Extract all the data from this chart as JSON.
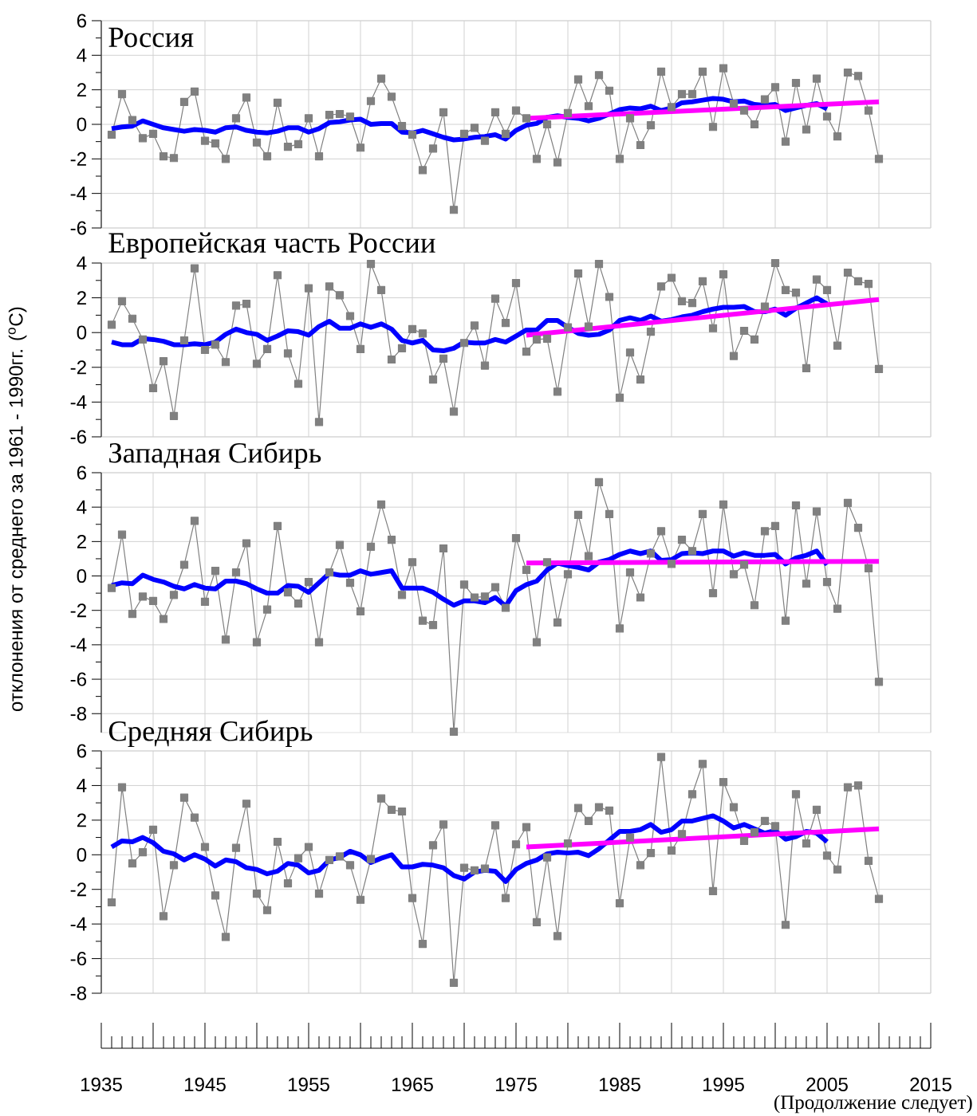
{
  "chart_data": [
    {
      "type": "line",
      "title": "Россия",
      "xlim": [
        1935,
        2015
      ],
      "xticks": [
        1935,
        {
          "value": 1940,
          "label": null
        },
        1945,
        {
          "value": 1950,
          "label": null
        },
        1955,
        {
          "value": 1960,
          "label": null
        },
        1965,
        {
          "value": 1970,
          "label": null
        },
        1975,
        {
          "value": 1980,
          "label": null
        },
        1985,
        {
          "value": 1990,
          "label": null
        },
        1995,
        {
          "value": 2000,
          "label": null
        },
        2005,
        {
          "value": 2010,
          "label": null
        },
        2015
      ],
      "ylim": [
        -6,
        6
      ],
      "yticks": [
        -6,
        -4,
        -2,
        0,
        2,
        4,
        6
      ],
      "grid": true,
      "tick_labels": "y",
      "x": [
        1936,
        1937,
        1938,
        1939,
        1940,
        1941,
        1942,
        1943,
        1944,
        1945,
        1946,
        1947,
        1948,
        1949,
        1950,
        1951,
        1952,
        1953,
        1954,
        1955,
        1956,
        1957,
        1958,
        1959,
        1960,
        1961,
        1962,
        1963,
        1964,
        1965,
        1966,
        1967,
        1968,
        1969,
        1970,
        1971,
        1972,
        1973,
        1974,
        1975,
        1976,
        1977,
        1978,
        1979,
        1980,
        1981,
        1982,
        1983,
        1984,
        1985,
        1986,
        1987,
        1988,
        1989,
        1990,
        1991,
        1992,
        1993,
        1994,
        1995,
        1996,
        1997,
        1998,
        1999,
        2000,
        2001,
        2002,
        2003,
        2004,
        2005,
        2006,
        2007,
        2008,
        2009,
        2010
      ],
      "series": [
        {
          "color": "#808080",
          "marker": "square",
          "values": [
            -0.6,
            1.75,
            0.25,
            -0.8,
            -0.55,
            -1.85,
            -1.95,
            1.3,
            1.9,
            -0.95,
            -1.1,
            -2.0,
            0.35,
            1.55,
            -1.05,
            -1.85,
            1.25,
            -1.3,
            -1.15,
            0.35,
            -1.85,
            0.55,
            0.6,
            0.45,
            -1.35,
            1.35,
            2.65,
            1.6,
            -0.1,
            -0.6,
            -2.65,
            -1.4,
            0.7,
            -4.95,
            -0.55,
            -0.2,
            -0.95,
            0.7,
            -0.55,
            0.8,
            0.35,
            -2.0,
            0.0,
            -2.2,
            0.65,
            2.6,
            1.05,
            2.85,
            1.95,
            -2.0,
            0.35,
            -1.2,
            -0.05,
            3.05,
            1.0,
            1.75,
            1.75,
            3.05,
            -0.15,
            3.25,
            1.2,
            0.8,
            0.0,
            1.45,
            2.15,
            -1.0,
            2.4,
            -0.3,
            2.65,
            0.45,
            -0.7,
            3.0,
            2.8,
            0.8,
            -2.0
          ]
        },
        {
          "color": "#0000ff",
          "marker": "none",
          "x": [
            1936,
            1937,
            1938,
            1939,
            1940,
            1941,
            1942,
            1943,
            1944,
            1945,
            1946,
            1947,
            1948,
            1949,
            1950,
            1951,
            1952,
            1953,
            1954,
            1955,
            1956,
            1957,
            1958,
            1959,
            1960,
            1961,
            1962,
            1963,
            1964,
            1965,
            1966,
            1967,
            1968,
            1969,
            1970,
            1971,
            1972,
            1973,
            1974,
            1975,
            1976,
            1977,
            1978,
            1979,
            1980,
            1981,
            1982,
            1983,
            1984,
            1985,
            1986,
            1987,
            1988,
            1989,
            1990,
            1991,
            1992,
            1993,
            1994,
            1995,
            1996,
            1997,
            1998,
            1999,
            2000,
            2001,
            2002,
            2003,
            2004,
            2005
          ],
          "values": [
            -0.25,
            -0.15,
            -0.1,
            0.2,
            0.0,
            -0.2,
            -0.3,
            -0.4,
            -0.3,
            -0.35,
            -0.45,
            -0.2,
            -0.15,
            -0.35,
            -0.45,
            -0.5,
            -0.4,
            -0.2,
            -0.2,
            -0.45,
            -0.25,
            0.1,
            0.15,
            0.25,
            0.3,
            0.0,
            0.05,
            0.05,
            -0.45,
            -0.5,
            -0.35,
            -0.55,
            -0.75,
            -0.9,
            -0.85,
            -0.75,
            -0.7,
            -0.6,
            -0.85,
            -0.35,
            -0.05,
            0.05,
            0.4,
            0.5,
            0.4,
            0.35,
            0.2,
            0.35,
            0.6,
            0.85,
            0.95,
            0.9,
            1.05,
            0.8,
            0.95,
            1.25,
            1.3,
            1.4,
            1.5,
            1.45,
            1.3,
            1.35,
            1.15,
            1.1,
            1.15,
            0.8,
            0.95,
            1.1,
            1.2,
            0.9
          ]
        },
        {
          "color": "#ff00ff",
          "marker": "none",
          "x": [
            1976,
            2010
          ],
          "values": [
            0.35,
            1.3
          ]
        }
      ]
    },
    {
      "type": "line",
      "title": "Европейская часть России",
      "xlim": [
        1935,
        2015
      ],
      "xticks": [
        1935,
        {
          "value": 1940,
          "label": null
        },
        1945,
        {
          "value": 1950,
          "label": null
        },
        1955,
        {
          "value": 1960,
          "label": null
        },
        1965,
        {
          "value": 1970,
          "label": null
        },
        1975,
        {
          "value": 1980,
          "label": null
        },
        1985,
        {
          "value": 1990,
          "label": null
        },
        1995,
        {
          "value": 2000,
          "label": null
        },
        2005,
        {
          "value": 2010,
          "label": null
        },
        2015
      ],
      "ylim": [
        -6,
        4
      ],
      "yticks": [
        -6,
        -4,
        -2,
        0,
        2,
        4
      ],
      "grid": true,
      "tick_labels": "y",
      "x": [
        1936,
        1937,
        1938,
        1939,
        1940,
        1941,
        1942,
        1943,
        1944,
        1945,
        1946,
        1947,
        1948,
        1949,
        1950,
        1951,
        1952,
        1953,
        1954,
        1955,
        1956,
        1957,
        1958,
        1959,
        1960,
        1961,
        1962,
        1963,
        1964,
        1965,
        1966,
        1967,
        1968,
        1969,
        1970,
        1971,
        1972,
        1973,
        1974,
        1975,
        1976,
        1977,
        1978,
        1979,
        1980,
        1981,
        1982,
        1983,
        1984,
        1985,
        1986,
        1987,
        1988,
        1989,
        1990,
        1991,
        1992,
        1993,
        1994,
        1995,
        1996,
        1997,
        1998,
        1999,
        2000,
        2001,
        2002,
        2003,
        2004,
        2005,
        2006,
        2007,
        2008,
        2009,
        2010
      ],
      "series": [
        {
          "color": "#808080",
          "marker": "square",
          "values": [
            0.45,
            1.8,
            0.8,
            -0.4,
            -3.2,
            -1.65,
            -4.8,
            -0.45,
            3.7,
            -1.0,
            -0.7,
            -1.7,
            1.55,
            1.65,
            -1.8,
            -0.95,
            3.3,
            -1.2,
            -2.95,
            2.55,
            -5.15,
            2.65,
            2.15,
            0.95,
            -0.95,
            3.95,
            2.45,
            -1.55,
            -0.9,
            0.2,
            -0.05,
            -2.7,
            -1.5,
            -4.55,
            -0.6,
            0.4,
            -1.9,
            1.95,
            0.55,
            2.85,
            -1.1,
            -0.4,
            -0.35,
            -3.4,
            0.3,
            3.4,
            0.35,
            3.95,
            2.05,
            -3.75,
            -1.15,
            -2.7,
            0.05,
            2.65,
            3.15,
            1.8,
            1.7,
            2.95,
            0.25,
            3.35,
            -1.35,
            0.1,
            -0.4,
            1.5,
            4.0,
            2.45,
            2.3,
            -2.05,
            3.05,
            2.45,
            -0.75,
            3.45,
            2.95,
            2.8,
            -2.1
          ]
        },
        {
          "color": "#0000ff",
          "marker": "none",
          "x": [
            1936,
            1937,
            1938,
            1939,
            1940,
            1941,
            1942,
            1943,
            1944,
            1945,
            1946,
            1947,
            1948,
            1949,
            1950,
            1951,
            1952,
            1953,
            1954,
            1955,
            1956,
            1957,
            1958,
            1959,
            1960,
            1961,
            1962,
            1963,
            1964,
            1965,
            1966,
            1967,
            1968,
            1969,
            1970,
            1971,
            1972,
            1973,
            1974,
            1975,
            1976,
            1977,
            1978,
            1979,
            1980,
            1981,
            1982,
            1983,
            1984,
            1985,
            1986,
            1987,
            1988,
            1989,
            1990,
            1991,
            1992,
            1993,
            1994,
            1995,
            1996,
            1997,
            1998,
            1999,
            2000,
            2001,
            2002,
            2003,
            2004,
            2005
          ],
          "values": [
            -0.55,
            -0.7,
            -0.7,
            -0.35,
            -0.4,
            -0.5,
            -0.7,
            -0.7,
            -0.65,
            -0.7,
            -0.55,
            -0.1,
            0.2,
            0.0,
            -0.1,
            -0.45,
            -0.2,
            0.1,
            0.05,
            -0.15,
            0.35,
            0.65,
            0.25,
            0.25,
            0.5,
            0.3,
            0.5,
            0.2,
            -0.45,
            -0.6,
            -0.45,
            -1.0,
            -1.05,
            -0.9,
            -0.55,
            -0.6,
            -0.6,
            -0.4,
            -0.55,
            -0.2,
            0.15,
            0.15,
            0.7,
            0.7,
            0.3,
            -0.05,
            -0.15,
            -0.1,
            0.15,
            0.7,
            0.85,
            0.7,
            0.95,
            0.65,
            0.75,
            0.9,
            1.0,
            1.2,
            1.35,
            1.45,
            1.45,
            1.5,
            1.2,
            1.2,
            1.35,
            1.0,
            1.4,
            1.7,
            2.0,
            1.65
          ]
        },
        {
          "color": "#ff00ff",
          "marker": "none",
          "x": [
            1976,
            2010
          ],
          "values": [
            -0.15,
            1.9
          ]
        }
      ]
    },
    {
      "type": "line",
      "title": "Западная Сибирь",
      "ylabel": "отклонения от среднего за 1961 - 1990гг. ($^{o}$C)",
      "xlim": [
        1935,
        2015
      ],
      "xticks": [
        1935,
        {
          "value": 1940,
          "label": null
        },
        1945,
        {
          "value": 1950,
          "label": null
        },
        1955,
        {
          "value": 1960,
          "label": null
        },
        1965,
        {
          "value": 1970,
          "label": null
        },
        1975,
        {
          "value": 1980,
          "label": null
        },
        1985,
        {
          "value": 1990,
          "label": null
        },
        1995,
        {
          "value": 2000,
          "label": null
        },
        2005,
        {
          "value": 2010,
          "label": null
        },
        2015
      ],
      "ylim": [
        -9.1,
        6
      ],
      "yticks": [
        -8,
        -6,
        -4,
        -2,
        0,
        2,
        4,
        6
      ],
      "grid": true,
      "tick_labels": "y",
      "x": [
        1936,
        1937,
        1938,
        1939,
        1940,
        1941,
        1942,
        1943,
        1944,
        1945,
        1946,
        1947,
        1948,
        1949,
        1950,
        1951,
        1952,
        1953,
        1954,
        1955,
        1956,
        1957,
        1958,
        1959,
        1960,
        1961,
        1962,
        1963,
        1964,
        1965,
        1966,
        1967,
        1968,
        1969,
        1970,
        1971,
        1972,
        1973,
        1974,
        1975,
        1976,
        1977,
        1978,
        1979,
        1980,
        1981,
        1982,
        1983,
        1984,
        1985,
        1986,
        1987,
        1988,
        1989,
        1990,
        1991,
        1992,
        1993,
        1994,
        1995,
        1996,
        1997,
        1998,
        1999,
        2000,
        2001,
        2002,
        2003,
        2004,
        2005,
        2006,
        2007,
        2008,
        2009,
        2010
      ],
      "series": [
        {
          "color": "#808080",
          "marker": "square",
          "values": [
            -0.7,
            2.4,
            -2.2,
            -1.2,
            -1.45,
            -2.5,
            -1.1,
            0.65,
            3.2,
            -1.5,
            0.3,
            -3.7,
            0.2,
            1.9,
            -3.85,
            -1.95,
            2.9,
            -0.95,
            -1.6,
            -0.35,
            -3.85,
            0.2,
            1.8,
            -0.4,
            -2.05,
            1.7,
            4.15,
            2.1,
            -1.1,
            0.8,
            -2.6,
            -2.85,
            1.6,
            -9.05,
            -0.5,
            -1.25,
            -1.2,
            -0.65,
            -1.85,
            2.2,
            0.35,
            -3.85,
            0.8,
            -2.7,
            0.1,
            3.55,
            1.15,
            5.45,
            3.6,
            -3.05,
            0.2,
            -1.25,
            1.3,
            2.6,
            0.7,
            2.1,
            1.45,
            3.6,
            -1.0,
            4.15,
            0.1,
            0.65,
            -1.7,
            2.6,
            2.9,
            -2.6,
            4.1,
            -0.45,
            3.75,
            -0.35,
            -1.9,
            4.25,
            2.8,
            0.45,
            -6.15
          ]
        },
        {
          "color": "#0000ff",
          "marker": "none",
          "x": [
            1936,
            1937,
            1938,
            1939,
            1940,
            1941,
            1942,
            1943,
            1944,
            1945,
            1946,
            1947,
            1948,
            1949,
            1950,
            1951,
            1952,
            1953,
            1954,
            1955,
            1956,
            1957,
            1958,
            1959,
            1960,
            1961,
            1962,
            1963,
            1964,
            1965,
            1966,
            1967,
            1968,
            1969,
            1970,
            1971,
            1972,
            1973,
            1974,
            1975,
            1976,
            1977,
            1978,
            1979,
            1980,
            1981,
            1982,
            1983,
            1984,
            1985,
            1986,
            1987,
            1988,
            1989,
            1990,
            1991,
            1992,
            1993,
            1994,
            1995,
            1996,
            1997,
            1998,
            1999,
            2000,
            2001,
            2002,
            2003,
            2004,
            2005
          ],
          "values": [
            -0.55,
            -0.4,
            -0.45,
            0.05,
            -0.2,
            -0.35,
            -0.6,
            -0.75,
            -0.5,
            -0.7,
            -0.75,
            -0.3,
            -0.3,
            -0.45,
            -0.75,
            -1.0,
            -1.0,
            -0.55,
            -0.6,
            -0.95,
            -0.4,
            0.15,
            0.05,
            0.05,
            0.3,
            0.1,
            0.2,
            0.3,
            -0.7,
            -0.7,
            -0.7,
            -0.95,
            -1.35,
            -1.7,
            -1.45,
            -1.45,
            -1.55,
            -1.25,
            -1.75,
            -0.85,
            -0.5,
            -0.3,
            0.35,
            0.75,
            0.6,
            0.5,
            0.35,
            0.8,
            0.95,
            1.25,
            1.45,
            1.3,
            1.45,
            0.9,
            0.95,
            1.3,
            1.35,
            1.3,
            1.45,
            1.45,
            1.15,
            1.35,
            1.2,
            1.2,
            1.25,
            0.7,
            1.05,
            1.2,
            1.45,
            0.65
          ]
        },
        {
          "color": "#ff00ff",
          "marker": "none",
          "x": [
            1976,
            2010
          ],
          "values": [
            0.75,
            0.85
          ]
        }
      ]
    },
    {
      "type": "line",
      "title": "Средняя Сибирь",
      "annotations": [
        "(Продолжение следует)"
      ],
      "xlim": [
        1935,
        2015
      ],
      "xticks": [
        1935,
        {
          "value": 1940,
          "label": null
        },
        1945,
        {
          "value": 1950,
          "label": null
        },
        1955,
        {
          "value": 1960,
          "label": null
        },
        1965,
        {
          "value": 1970,
          "label": null
        },
        1975,
        {
          "value": 1980,
          "label": null
        },
        1985,
        {
          "value": 1990,
          "label": null
        },
        1995,
        {
          "value": 2000,
          "label": null
        },
        2005,
        {
          "value": 2010,
          "label": null
        },
        2015
      ],
      "ylim": [
        -8,
        6
      ],
      "yticks": [
        -8,
        -6,
        -4,
        -2,
        0,
        2,
        4,
        6
      ],
      "grid": true,
      "x": [
        1936,
        1937,
        1938,
        1939,
        1940,
        1941,
        1942,
        1943,
        1944,
        1945,
        1946,
        1947,
        1948,
        1949,
        1950,
        1951,
        1952,
        1953,
        1954,
        1955,
        1956,
        1957,
        1958,
        1959,
        1960,
        1961,
        1962,
        1963,
        1964,
        1965,
        1966,
        1967,
        1968,
        1969,
        1970,
        1971,
        1972,
        1973,
        1974,
        1975,
        1976,
        1977,
        1978,
        1979,
        1980,
        1981,
        1982,
        1983,
        1984,
        1985,
        1986,
        1987,
        1988,
        1989,
        1990,
        1991,
        1992,
        1993,
        1994,
        1995,
        1996,
        1997,
        1998,
        1999,
        2000,
        2001,
        2002,
        2003,
        2004,
        2005,
        2006,
        2007,
        2008,
        2009,
        2010
      ],
      "series": [
        {
          "color": "#808080",
          "marker": "square",
          "values": [
            -2.75,
            3.9,
            -0.5,
            0.15,
            1.45,
            -3.55,
            -0.6,
            3.3,
            2.15,
            0.45,
            -2.35,
            -4.75,
            0.4,
            2.95,
            -2.25,
            -3.2,
            0.75,
            -1.65,
            -0.2,
            0.45,
            -2.25,
            -0.3,
            -0.1,
            -0.6,
            -2.6,
            -0.25,
            3.25,
            2.6,
            2.5,
            -2.5,
            -5.15,
            0.55,
            1.75,
            -7.4,
            -0.75,
            -0.9,
            -0.8,
            1.7,
            -2.5,
            0.6,
            1.6,
            -3.9,
            -0.15,
            -4.7,
            0.65,
            2.7,
            1.95,
            2.75,
            2.55,
            -2.8,
            1.0,
            -0.6,
            0.1,
            5.65,
            0.25,
            1.2,
            3.5,
            5.25,
            -2.1,
            4.2,
            2.75,
            0.8,
            1.3,
            1.95,
            1.65,
            -4.05,
            3.5,
            0.65,
            2.6,
            -0.05,
            -0.85,
            3.9,
            4.0,
            -0.35,
            -2.55
          ]
        },
        {
          "color": "#0000ff",
          "marker": "none",
          "x": [
            1936,
            1937,
            1938,
            1939,
            1940,
            1941,
            1942,
            1943,
            1944,
            1945,
            1946,
            1947,
            1948,
            1949,
            1950,
            1951,
            1952,
            1953,
            1954,
            1955,
            1956,
            1957,
            1958,
            1959,
            1960,
            1961,
            1962,
            1963,
            1964,
            1965,
            1966,
            1967,
            1968,
            1969,
            1970,
            1971,
            1972,
            1973,
            1974,
            1975,
            1976,
            1977,
            1978,
            1979,
            1980,
            1981,
            1982,
            1983,
            1984,
            1985,
            1986,
            1987,
            1988,
            1989,
            1990,
            1991,
            1992,
            1993,
            1994,
            1995,
            1996,
            1997,
            1998,
            1999,
            2000,
            2001,
            2002,
            2003,
            2004,
            2005
          ],
          "values": [
            0.45,
            0.8,
            0.75,
            1.0,
            0.7,
            0.2,
            0.05,
            -0.3,
            0.0,
            -0.25,
            -0.65,
            -0.3,
            -0.4,
            -0.75,
            -0.85,
            -1.1,
            -0.95,
            -0.5,
            -0.6,
            -1.05,
            -0.9,
            -0.3,
            -0.15,
            0.2,
            0.0,
            -0.45,
            -0.2,
            0.0,
            -0.7,
            -0.7,
            -0.55,
            -0.6,
            -0.75,
            -1.2,
            -1.4,
            -1.0,
            -0.9,
            -0.95,
            -1.55,
            -0.85,
            -0.5,
            -0.3,
            0.05,
            0.15,
            0.1,
            0.15,
            -0.05,
            0.35,
            0.85,
            1.35,
            1.35,
            1.45,
            1.75,
            1.3,
            1.45,
            1.95,
            1.95,
            2.1,
            2.25,
            1.95,
            1.55,
            1.75,
            1.5,
            1.25,
            1.4,
            0.9,
            1.05,
            1.35,
            1.25,
            0.75
          ]
        },
        {
          "color": "#ff00ff",
          "marker": "none",
          "x": [
            1976,
            2010
          ],
          "values": [
            0.45,
            1.5
          ]
        }
      ]
    }
  ]
}
